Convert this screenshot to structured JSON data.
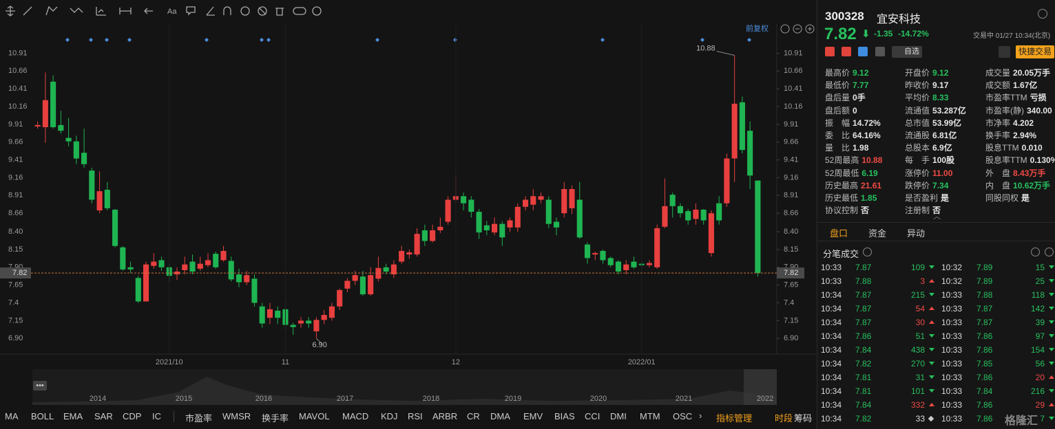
{
  "chart_data": {
    "type": "candlestick",
    "adjust_label": "前复权",
    "up_color": "#e8403f",
    "down_color": "#1fb552",
    "last_price_color": "#c8743c",
    "categories": [
      null,
      null,
      null,
      null,
      null,
      null,
      null,
      null,
      null,
      null,
      null,
      null,
      null,
      null,
      null,
      null,
      null,
      "2021/10",
      null,
      null,
      null,
      null,
      null,
      null,
      null,
      null,
      null,
      null,
      null,
      null,
      null,
      null,
      "11",
      null,
      null,
      null,
      null,
      null,
      null,
      null,
      null,
      null,
      null,
      null,
      null,
      null,
      null,
      null,
      null,
      null,
      null,
      null,
      null,
      null,
      "12",
      null,
      null,
      null,
      null,
      null,
      null,
      null,
      null,
      null,
      null,
      null,
      null,
      null,
      null,
      null,
      null,
      null,
      null,
      null,
      null,
      null,
      null,
      null,
      "2022/01",
      null,
      null,
      null,
      null,
      null,
      null,
      null,
      null,
      null,
      null,
      null,
      null,
      null,
      null,
      null
    ],
    "open": [
      9.88,
      9.87,
      10.51,
      9.9,
      9.72,
      9.67,
      9.51,
      9.26,
      8.7,
      8.99,
      8.71,
      8.18,
      7.9,
      7.75,
      7.42,
      7.92,
      8.0,
      7.9,
      7.8,
      7.86,
      7.98,
      7.88,
      7.93,
      8.09,
      8.0,
      7.99,
      7.8,
      7.69,
      7.74,
      7.35,
      7.19,
      7.29,
      7.31,
      7.09,
      7.11,
      7.15,
      7.0,
      7.16,
      7.19,
      7.35,
      7.6,
      7.71,
      7.77,
      7.52,
      7.74,
      7.9,
      7.8,
      7.98,
      8.08,
      8.08,
      8.42,
      8.27,
      8.42,
      8.54,
      8.85,
      8.9,
      8.85,
      8.68,
      8.49,
      8.39,
      8.51,
      8.46,
      8.46,
      8.75,
      8.78,
      8.85,
      8.85,
      8.54,
      8.66,
      8.73,
      8.85,
      8.22,
      8.08,
      8.13,
      8.03,
      7.98,
      7.86,
      7.98,
      7.95,
      7.93,
      7.9,
      8.47,
      8.92,
      8.76,
      8.69,
      8.58,
      8.71,
      8.1,
      8.8,
      8.8,
      9.43,
      10.22,
      9.82,
      9.12
    ],
    "high": [
      9.95,
      10.64,
      10.6,
      10.1,
      10.0,
      9.75,
      9.85,
      9.3,
      9.25,
      9.1,
      8.72,
      8.2,
      7.98,
      7.78,
      7.98,
      8.1,
      8.05,
      7.95,
      7.9,
      8.05,
      8.08,
      8.05,
      8.1,
      8.12,
      8.2,
      8.05,
      7.88,
      7.85,
      7.8,
      7.4,
      7.4,
      7.35,
      7.45,
      7.12,
      7.2,
      7.2,
      7.2,
      7.3,
      7.4,
      7.6,
      7.75,
      7.85,
      7.85,
      7.9,
      8.05,
      7.95,
      8.0,
      8.2,
      8.15,
      8.45,
      8.5,
      8.5,
      8.6,
      8.9,
      9.2,
      8.95,
      8.9,
      8.72,
      8.55,
      8.6,
      8.55,
      8.6,
      8.8,
      8.9,
      9.0,
      8.95,
      8.9,
      8.6,
      9.1,
      9.05,
      9.1,
      8.25,
      8.12,
      8.15,
      8.05,
      8.0,
      8.0,
      8.05,
      7.98,
      8.0,
      8.5,
      9.15,
      8.95,
      8.8,
      8.72,
      8.8,
      8.72,
      8.7,
      8.9,
      9.5,
      10.88,
      10.3,
      9.95,
      9.12
    ],
    "low": [
      9.85,
      9.65,
      9.85,
      9.78,
      9.6,
      9.35,
      9.3,
      8.8,
      8.66,
      8.7,
      8.18,
      7.85,
      7.82,
      7.4,
      7.42,
      7.88,
      7.85,
      7.7,
      7.72,
      7.8,
      7.8,
      7.85,
      7.9,
      7.88,
      7.98,
      7.7,
      7.62,
      7.65,
      7.35,
      7.05,
      7.1,
      7.1,
      7.0,
      6.95,
      7.05,
      7.05,
      6.9,
      7.1,
      7.15,
      7.3,
      7.55,
      7.65,
      7.5,
      7.5,
      7.7,
      7.8,
      7.75,
      7.95,
      8.02,
      8.05,
      8.2,
      8.25,
      8.38,
      8.5,
      8.82,
      8.7,
      8.6,
      8.3,
      8.35,
      8.35,
      8.2,
      8.4,
      8.4,
      8.7,
      8.7,
      8.8,
      8.45,
      8.35,
      8.6,
      8.65,
      8.3,
      7.95,
      8.0,
      7.95,
      7.9,
      7.8,
      7.8,
      7.88,
      7.9,
      7.9,
      7.88,
      8.45,
      8.6,
      8.6,
      8.5,
      8.5,
      8.5,
      8.05,
      8.5,
      8.75,
      9.1,
      9.5,
      9.0,
      7.77
    ],
    "close": [
      9.9,
      10.25,
      9.87,
      9.82,
      9.67,
      9.43,
      9.35,
      8.85,
      8.97,
      8.73,
      8.2,
      7.87,
      7.87,
      7.42,
      7.94,
      7.98,
      7.9,
      7.78,
      7.84,
      7.94,
      7.84,
      7.95,
      8.0,
      7.9,
      8.13,
      7.73,
      7.69,
      7.79,
      7.4,
      7.11,
      7.31,
      7.19,
      7.09,
      7.06,
      7.15,
      7.11,
      7.16,
      7.23,
      7.35,
      7.58,
      7.71,
      7.79,
      7.52,
      7.79,
      7.89,
      7.84,
      7.94,
      8.13,
      8.11,
      8.37,
      8.27,
      8.42,
      8.47,
      8.85,
      8.9,
      8.8,
      8.68,
      8.39,
      8.42,
      8.51,
      8.32,
      8.56,
      8.75,
      8.85,
      8.9,
      8.9,
      8.51,
      8.46,
      9.0,
      9.0,
      8.32,
      8.03,
      8.1,
      8.0,
      7.93,
      7.84,
      7.94,
      7.9,
      7.93,
      7.96,
      8.45,
      8.76,
      8.76,
      8.66,
      8.56,
      8.71,
      8.56,
      8.66,
      8.56,
      9.43,
      10.2,
      9.55,
      9.19,
      7.82
    ],
    "ylim": [
      6.68,
      11.32
    ],
    "yticks": [
      {
        "value": 6.9,
        "label": "6.90"
      },
      7.15,
      7.4,
      7.65,
      {
        "value": 7.9,
        "label": "7.90"
      },
      8.15,
      {
        "value": 8.4,
        "label": "8.40"
      },
      8.66,
      8.91,
      9.16,
      9.41,
      9.66,
      9.91,
      10.16,
      10.41,
      10.66,
      10.91
    ],
    "last_price": 7.82,
    "max_marker": 10.88,
    "min_marker": {
      "value": 6.9,
      "label": "6.90"
    },
    "navigator_years": [
      "2014",
      "2015",
      "2016",
      "2017",
      "2018",
      "2019",
      "2020",
      "2021",
      "2022"
    ]
  },
  "toolbar": {
    "font_label": "Aa"
  },
  "stock": {
    "code": "300328",
    "name": "宜安科技",
    "price": "7.82",
    "change": "-1.35",
    "change_pct": "-14.72%",
    "status": "交易中 01/27 10:34(北京)",
    "watch": "自选",
    "quick_trade": "快捷交易"
  },
  "quote": {
    "rows": [
      [
        {
          "label": "最高价",
          "value": "9.12",
          "tone": "down"
        },
        {
          "label": "开盘价",
          "value": "9.12",
          "tone": "down"
        },
        {
          "label": "成交量",
          "value": "20.05万手"
        }
      ],
      [
        {
          "label": "最低价",
          "value": "7.77",
          "tone": "down"
        },
        {
          "label": "昨收价",
          "value": "9.17"
        },
        {
          "label": "成交额",
          "value": "1.67亿"
        }
      ],
      [
        {
          "label": "盘后量",
          "value": "0手"
        },
        {
          "label": "平均价",
          "value": "8.33",
          "tone": "down"
        },
        {
          "label": "市盈率TTM",
          "value": "亏损"
        }
      ],
      [
        {
          "label": "盘后额",
          "value": "0"
        },
        {
          "label": "流通值",
          "value": "53.287亿"
        },
        {
          "label": "市盈率(静)",
          "value": "340.00"
        }
      ],
      [
        {
          "label": "振　幅",
          "value": "14.72%"
        },
        {
          "label": "总市值",
          "value": "53.99亿"
        },
        {
          "label": "市净率",
          "value": "4.202"
        }
      ],
      [
        {
          "label": "委　比",
          "value": "64.16%"
        },
        {
          "label": "流通股",
          "value": "6.81亿"
        },
        {
          "label": "换手率",
          "value": "2.94%"
        }
      ],
      [
        {
          "label": "量　比",
          "value": "1.98"
        },
        {
          "label": "总股本",
          "value": "6.9亿"
        },
        {
          "label": "股息TTM",
          "value": "0.010"
        }
      ],
      [
        {
          "label": "52周最高",
          "value": "10.88",
          "tone": "up"
        },
        {
          "label": "每　手",
          "value": "100股"
        },
        {
          "label": "股息率TTM",
          "value": "0.130%"
        }
      ],
      [
        {
          "label": "52周最低",
          "value": "6.19",
          "tone": "down"
        },
        {
          "label": "涨停价",
          "value": "11.00",
          "tone": "up"
        },
        {
          "label": "外　盘",
          "value": "8.43万手",
          "tone": "up"
        }
      ],
      [
        {
          "label": "历史最高",
          "value": "21.61",
          "tone": "up"
        },
        {
          "label": "跌停价",
          "value": "7.34",
          "tone": "down"
        },
        {
          "label": "内　盘",
          "value": "10.62万手",
          "tone": "down"
        }
      ],
      [
        {
          "label": "历史最低",
          "value": "1.85",
          "tone": "down"
        },
        {
          "label": "是否盈利",
          "value": "是"
        },
        {
          "label": "同股同权",
          "value": "是"
        }
      ],
      [
        {
          "label": "协议控制",
          "value": "否"
        },
        {
          "label": "注册制",
          "value": "否"
        }
      ]
    ]
  },
  "tabs": [
    "盘口",
    "资金",
    "异动"
  ],
  "trades": {
    "title": "分笔成交",
    "rows": [
      [
        {
          "time": "10:33",
          "price": "7.87",
          "volume": "109",
          "dir": "down"
        },
        {
          "time": "10:32",
          "price": "7.89",
          "volume": "15",
          "dir": "down"
        }
      ],
      [
        {
          "time": "10:33",
          "price": "7.88",
          "volume": "3",
          "dir": "up"
        },
        {
          "time": "10:32",
          "price": "7.89",
          "volume": "25",
          "dir": "down"
        }
      ],
      [
        {
          "time": "10:34",
          "price": "7.87",
          "volume": "215",
          "dir": "down"
        },
        {
          "time": "10:33",
          "price": "7.88",
          "volume": "118",
          "dir": "down"
        }
      ],
      [
        {
          "time": "10:34",
          "price": "7.87",
          "volume": "54",
          "dir": "up"
        },
        {
          "time": "10:33",
          "price": "7.87",
          "volume": "142",
          "dir": "down"
        }
      ],
      [
        {
          "time": "10:34",
          "price": "7.87",
          "volume": "30",
          "dir": "up"
        },
        {
          "time": "10:33",
          "price": "7.87",
          "volume": "39",
          "dir": "down"
        }
      ],
      [
        {
          "time": "10:34",
          "price": "7.86",
          "volume": "51",
          "dir": "down"
        },
        {
          "time": "10:33",
          "price": "7.86",
          "volume": "97",
          "dir": "down"
        }
      ],
      [
        {
          "time": "10:34",
          "price": "7.84",
          "volume": "438",
          "dir": "down"
        },
        {
          "time": "10:33",
          "price": "7.86",
          "volume": "154",
          "dir": "down"
        }
      ],
      [
        {
          "time": "10:34",
          "price": "7.82",
          "volume": "270",
          "dir": "down"
        },
        {
          "time": "10:33",
          "price": "7.85",
          "volume": "56",
          "dir": "down"
        }
      ],
      [
        {
          "time": "10:34",
          "price": "7.81",
          "volume": "31",
          "dir": "down"
        },
        {
          "time": "10:33",
          "price": "7.86",
          "volume": "20",
          "dir": "up"
        }
      ],
      [
        {
          "time": "10:34",
          "price": "7.81",
          "volume": "101",
          "dir": "down"
        },
        {
          "time": "10:33",
          "price": "7.84",
          "volume": "216",
          "dir": "down"
        }
      ],
      [
        {
          "time": "10:34",
          "price": "7.84",
          "volume": "332",
          "dir": "up"
        },
        {
          "time": "10:33",
          "price": "7.86",
          "volume": "29",
          "dir": "up"
        }
      ],
      [
        {
          "time": "10:34",
          "price": "7.82",
          "volume": "33",
          "dir": "flat"
        },
        {
          "time": "10:33",
          "price": "7.86",
          "volume": "7",
          "dir": "down"
        }
      ]
    ]
  },
  "indicators": {
    "items": [
      "MA",
      "BOLL",
      "EMA",
      "SAR",
      "CDP",
      "IC",
      "市盈率",
      "WMSR",
      "换手率",
      "MAVOL",
      "MACD",
      "KDJ",
      "RSI",
      "ARBR",
      "CR",
      "DMA",
      "EMV",
      "BIAS",
      "CCI",
      "DMI",
      "MTM",
      "OSC"
    ],
    "manage": "指标管理",
    "session": "时段",
    "chips": "筹码"
  },
  "watermark": "格隆汇"
}
